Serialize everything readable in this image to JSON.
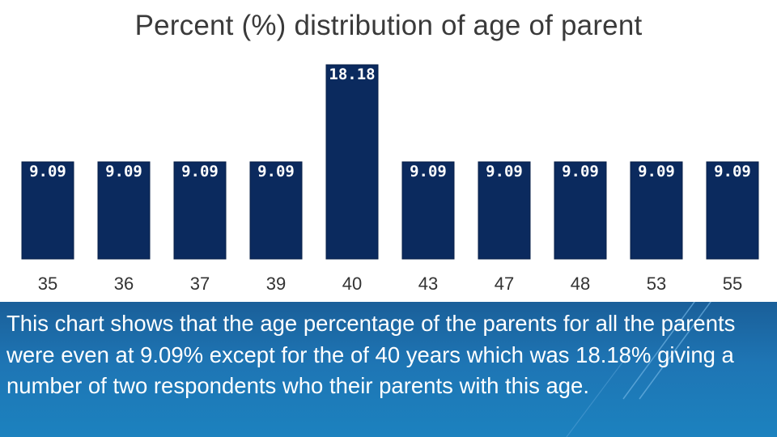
{
  "title": "Percent (%) distribution of age of parent",
  "caption": "This chart shows that the age percentage of the parents for all the parents were even at 9.09% except for the of 40 years which was 18.18% giving a number of two respondents who their parents with this age.",
  "colors": {
    "bar": "#0b2a5e",
    "bar_edge": "#082048",
    "panel": "#1e75b4"
  },
  "chart_data": {
    "type": "bar",
    "title": "Percent (%) distribution of age of parent",
    "xlabel": "",
    "ylabel": "",
    "categories": [
      "35",
      "36",
      "37",
      "39",
      "40",
      "43",
      "47",
      "48",
      "53",
      "55"
    ],
    "values": [
      9.09,
      9.09,
      9.09,
      9.09,
      18.18,
      9.09,
      9.09,
      9.09,
      9.09,
      9.09
    ],
    "value_labels": [
      "9.09",
      "9.09",
      "9.09",
      "9.09",
      "18.18",
      "9.09",
      "9.09",
      "9.09",
      "9.09",
      "9.09"
    ],
    "ylim": [
      0,
      20
    ],
    "grid": false,
    "legend": "none"
  }
}
